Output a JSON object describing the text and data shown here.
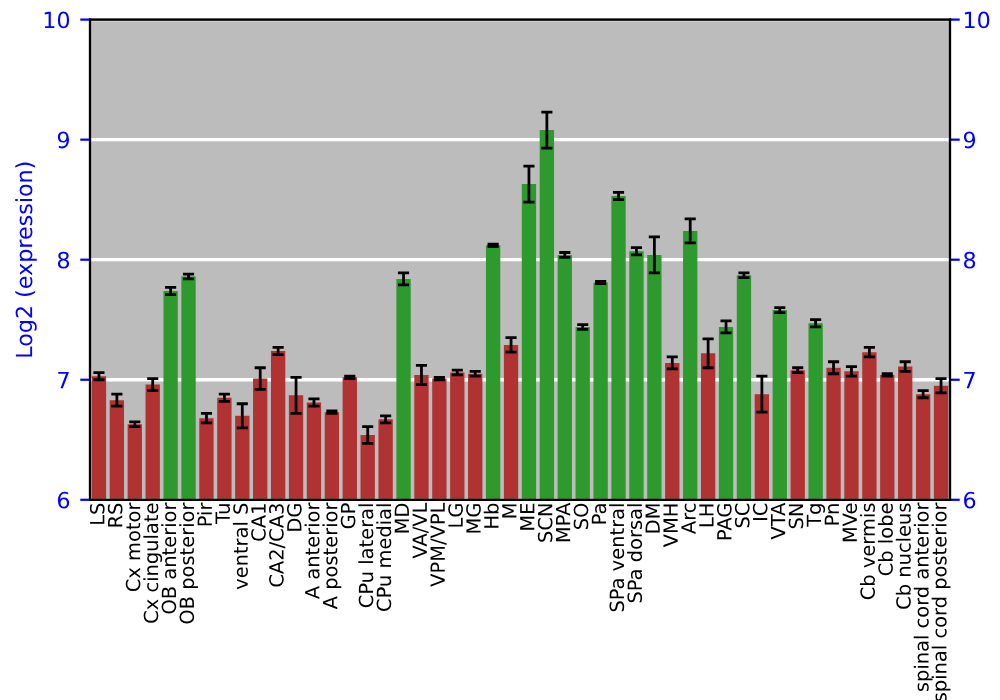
{
  "chart_data": {
    "type": "bar",
    "ylabel": "Log2 (expression)",
    "categories": [
      "LS",
      "RS",
      "Cx motor",
      "Cx cingulate",
      "OB anterior",
      "OB posterior",
      "Pir",
      "Tu",
      "ventral S",
      "CA1",
      "CA2/CA3",
      "DG",
      "A anterior",
      "A posterior",
      "GP",
      "CPu lateral",
      "CPu medial",
      "MD",
      "VA/VL",
      "VPM/VPL",
      "LG",
      "MG",
      "Hb",
      "M",
      "ME",
      "SCN",
      "MPA",
      "SO",
      "Pa",
      "SPa ventral",
      "SPa dorsal",
      "DM",
      "VMH",
      "Arc",
      "LH",
      "PAG",
      "SC",
      "IC",
      "VTA",
      "SN",
      "Tg",
      "Pn",
      "MVe",
      "Cb vermis",
      "Cb lobe",
      "Cb nucleus",
      "spinal cord anterior",
      "spinal cord posterior"
    ],
    "values": [
      7.03,
      6.83,
      6.63,
      6.96,
      7.74,
      7.86,
      6.68,
      6.85,
      6.7,
      7.01,
      7.24,
      6.87,
      6.81,
      6.73,
      7.02,
      6.54,
      6.67,
      7.84,
      7.04,
      7.01,
      7.06,
      7.05,
      8.12,
      7.29,
      8.63,
      9.08,
      8.04,
      7.44,
      7.81,
      8.53,
      8.07,
      8.04,
      7.14,
      8.24,
      7.22,
      7.44,
      7.87,
      6.88,
      7.58,
      7.08,
      7.47,
      7.1,
      7.07,
      7.23,
      7.04,
      7.11,
      6.88,
      6.95
    ],
    "errors": [
      0.03,
      0.05,
      0.02,
      0.05,
      0.03,
      0.02,
      0.04,
      0.03,
      0.1,
      0.09,
      0.03,
      0.15,
      0.03,
      0.01,
      0.01,
      0.07,
      0.03,
      0.05,
      0.08,
      0.01,
      0.02,
      0.02,
      0.01,
      0.06,
      0.15,
      0.15,
      0.02,
      0.02,
      0.01,
      0.03,
      0.03,
      0.15,
      0.05,
      0.1,
      0.12,
      0.05,
      0.02,
      0.15,
      0.02,
      0.02,
      0.03,
      0.05,
      0.04,
      0.04,
      0.01,
      0.04,
      0.03,
      0.06
    ],
    "colors": [
      "#b03232",
      "#b03232",
      "#b03232",
      "#b03232",
      "#2e9a2e",
      "#2e9a2e",
      "#b03232",
      "#b03232",
      "#b03232",
      "#b03232",
      "#b03232",
      "#b03232",
      "#b03232",
      "#b03232",
      "#b03232",
      "#b03232",
      "#b03232",
      "#2e9a2e",
      "#b03232",
      "#b03232",
      "#b03232",
      "#b03232",
      "#2e9a2e",
      "#b03232",
      "#2e9a2e",
      "#2e9a2e",
      "#2e9a2e",
      "#2e9a2e",
      "#2e9a2e",
      "#2e9a2e",
      "#2e9a2e",
      "#2e9a2e",
      "#b03232",
      "#2e9a2e",
      "#b03232",
      "#2e9a2e",
      "#2e9a2e",
      "#b03232",
      "#2e9a2e",
      "#b03232",
      "#2e9a2e",
      "#b03232",
      "#b03232",
      "#b03232",
      "#b03232",
      "#b03232",
      "#b03232",
      "#b03232"
    ],
    "ylim": [
      6,
      10
    ],
    "yticks": [
      6,
      7,
      8,
      9,
      10
    ],
    "y2lim": [
      6,
      10
    ],
    "y2ticks": [
      6,
      7,
      8,
      9,
      10
    ],
    "grid": "y"
  }
}
